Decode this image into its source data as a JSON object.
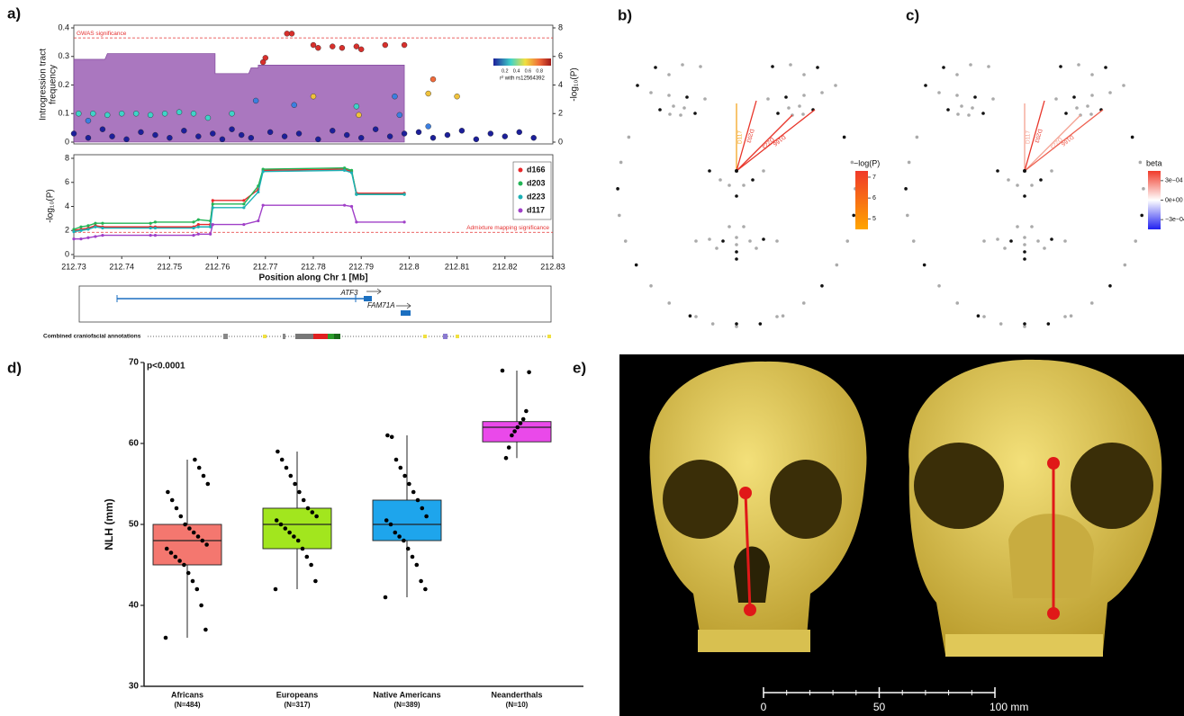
{
  "chart_data": [
    {
      "type": "area",
      "panel": "a)",
      "ylabel": [
        "Introgression tract",
        "frequency"
      ],
      "y2label": "-log₁₀(P)",
      "xlim": [
        212.73,
        212.83
      ],
      "ylim": [
        0,
        0.4
      ],
      "yticks": [
        0,
        0.1,
        0.2,
        0.3,
        0.4
      ],
      "y2lim": [
        0,
        8
      ],
      "y2ticks": [
        0,
        2,
        4,
        6,
        8
      ],
      "area": {
        "color": "#9b5fb4",
        "x": [
          212.73,
          212.7365,
          212.737,
          212.7595,
          212.7595,
          212.7665,
          212.767,
          212.7685,
          212.7685,
          212.799
        ],
        "values": [
          0.29,
          0.29,
          0.31,
          0.31,
          0.24,
          0.24,
          0.26,
          0.26,
          0.27,
          0.27
        ]
      },
      "annotation": {
        "text": "GWAS significance",
        "value": 7.3,
        "axis": "y2"
      },
      "colorbar": {
        "title": "r² with rs12564392",
        "lim": [
          0,
          1
        ],
        "ticks": [
          0.2,
          0.4,
          0.6,
          0.8
        ]
      },
      "series": [
        {
          "color": "#1c1f9a",
          "axis": "y2",
          "x": [
            212.73,
            212.733,
            212.736,
            212.738,
            212.741,
            212.744,
            212.747,
            212.75,
            212.753,
            212.756,
            212.759,
            212.761,
            212.763,
            212.765,
            212.767,
            212.771,
            212.774,
            212.777,
            212.781,
            212.784,
            212.787,
            212.79,
            212.793,
            212.796,
            212.799,
            212.802,
            212.805,
            212.808,
            212.811,
            212.814,
            212.817,
            212.82,
            212.823,
            212.826
          ],
          "values": [
            0.6,
            0.3,
            0.9,
            0.4,
            0.2,
            0.7,
            0.5,
            0.3,
            0.8,
            0.4,
            0.6,
            0.2,
            0.9,
            0.5,
            0.3,
            0.7,
            0.4,
            0.6,
            0.2,
            0.8,
            0.5,
            0.3,
            0.9,
            0.4,
            0.6,
            0.7,
            0.3,
            0.5,
            0.8,
            0.2,
            0.6,
            0.4,
            0.7,
            0.3
          ]
        },
        {
          "color": "#3fd3c8",
          "axis": "y2",
          "x": [
            212.731,
            212.734,
            212.737,
            212.74,
            212.743,
            212.746,
            212.749,
            212.752,
            212.755,
            212.758,
            212.763,
            212.789
          ],
          "values": [
            2.0,
            2.0,
            1.9,
            2.0,
            2.0,
            1.9,
            2.0,
            2.1,
            2.0,
            1.7,
            2.0,
            2.5
          ]
        },
        {
          "color": "#3b7fe0",
          "axis": "y2",
          "x": [
            212.733,
            212.768,
            212.776,
            212.797,
            212.798,
            212.804
          ],
          "values": [
            1.5,
            2.9,
            2.6,
            3.2,
            1.9,
            1.1
          ]
        },
        {
          "color": "#f0c23c",
          "axis": "y2",
          "x": [
            212.78,
            212.804,
            212.81,
            212.7895
          ],
          "values": [
            3.2,
            3.4,
            3.2,
            1.9
          ]
        },
        {
          "color": "#f06a3a",
          "axis": "y2",
          "x": [
            212.805
          ],
          "values": [
            4.4
          ]
        },
        {
          "color": "#d8302c",
          "axis": "y2",
          "x": [
            212.7745,
            212.7755,
            212.78,
            212.781,
            212.784,
            212.786,
            212.789,
            212.79,
            212.795,
            212.799,
            212.77,
            212.7695
          ],
          "values": [
            7.6,
            7.6,
            6.8,
            6.6,
            6.7,
            6.6,
            6.7,
            6.5,
            6.8,
            6.8,
            5.9,
            5.6
          ]
        }
      ]
    },
    {
      "type": "line",
      "ylabel": "-log₁₀(P)",
      "xlabel": "Position along Chr 1 [Mb]",
      "xlim": [
        212.73,
        212.83
      ],
      "xticks": [
        212.73,
        212.74,
        212.75,
        212.76,
        212.77,
        212.78,
        212.79,
        212.8,
        212.81,
        212.82,
        212.83
      ],
      "ylim": [
        0,
        8
      ],
      "yticks": [
        0,
        2,
        4,
        6,
        8
      ],
      "legend": "top-right",
      "annotation": {
        "text": "Admixture mapping significance",
        "value": 1.85
      },
      "x": [
        212.73,
        212.7315,
        212.733,
        212.7345,
        212.736,
        212.746,
        212.747,
        212.755,
        212.756,
        212.7585,
        212.759,
        212.7655,
        212.7685,
        212.7695,
        212.7865,
        212.788,
        212.789,
        212.799
      ],
      "series": [
        {
          "name": "d166",
          "color": "#e8282b",
          "values": [
            2.0,
            2.1,
            2.2,
            2.4,
            2.3,
            2.3,
            2.3,
            2.3,
            2.5,
            2.5,
            4.5,
            4.5,
            5.4,
            7.0,
            7.1,
            6.9,
            5.1,
            5.1
          ]
        },
        {
          "name": "d203",
          "color": "#22b455",
          "values": [
            2.1,
            2.3,
            2.4,
            2.6,
            2.6,
            2.6,
            2.7,
            2.7,
            2.9,
            2.8,
            4.2,
            4.2,
            5.7,
            7.1,
            7.2,
            7.0,
            5.0,
            5.0
          ]
        },
        {
          "name": "d223",
          "color": "#1bb0b5",
          "values": [
            1.9,
            2.0,
            2.1,
            2.3,
            2.2,
            2.2,
            2.2,
            2.2,
            2.3,
            2.3,
            3.9,
            3.9,
            5.2,
            6.9,
            7.0,
            6.8,
            5.0,
            5.0
          ]
        },
        {
          "name": "d117",
          "color": "#a040c8",
          "values": [
            1.3,
            1.3,
            1.4,
            1.5,
            1.6,
            1.6,
            1.6,
            1.6,
            1.7,
            1.7,
            2.5,
            2.5,
            2.8,
            4.1,
            4.1,
            4.0,
            2.7,
            2.7
          ]
        }
      ]
    },
    {
      "type": "box",
      "panel": "d)",
      "ylabel": "NLH (mm)",
      "annotation": "p<0.0001",
      "ylim": [
        30,
        70
      ],
      "yticks": [
        30,
        40,
        50,
        60,
        70
      ],
      "categories": [
        "Africans",
        "Europeans",
        "Native Americans",
        "Neanderthals"
      ],
      "sublabels": [
        "(N=484)",
        "(N=317)",
        "(N=389)",
        "(N=10)"
      ],
      "boxes": [
        {
          "color": "#f4776f",
          "min": 36,
          "q1": 45,
          "median": 48,
          "q3": 50,
          "max": 58,
          "points": [
            36,
            37,
            40,
            42,
            43,
            44,
            45,
            45.5,
            46,
            46.5,
            47,
            47.5,
            48,
            48.5,
            49,
            49.5,
            50,
            51,
            52,
            53,
            54,
            55,
            56,
            57,
            58
          ]
        },
        {
          "color": "#a2e61e",
          "min": 42,
          "q1": 47,
          "median": 50,
          "q3": 52,
          "max": 59,
          "points": [
            42,
            43,
            45,
            46,
            47,
            48,
            48.5,
            49,
            49.5,
            50,
            50.5,
            51,
            51.5,
            52,
            53,
            54,
            55,
            56,
            57,
            58,
            59
          ]
        },
        {
          "color": "#1ea5ec",
          "min": 41,
          "q1": 48,
          "median": 50,
          "q3": 53,
          "max": 61,
          "points": [
            41,
            42,
            43,
            45,
            46,
            47,
            48,
            48.5,
            49,
            50,
            50.5,
            51,
            52,
            53,
            54,
            55,
            56,
            57,
            58,
            60.8,
            61
          ]
        },
        {
          "color": "#ea49ea",
          "min": 58.2,
          "q1": 60.2,
          "median": 62,
          "q3": 62.7,
          "max": 69,
          "points": [
            69,
            68.8,
            64,
            63,
            62.5,
            62,
            61.5,
            61,
            59.5,
            58.2
          ]
        }
      ]
    }
  ],
  "gene_track": {
    "genes": [
      "ATF3",
      "FAM71A"
    ],
    "annotation_label": "Combined craniofacial annotations"
  },
  "panel_b": {
    "label": "b)",
    "distances": [
      "D117",
      "D203",
      "D223",
      "D166"
    ],
    "colorbar": {
      "title": "−log(P)",
      "lim": [
        4.5,
        7.3
      ],
      "ticks": [
        5,
        6,
        7
      ]
    }
  },
  "panel_c": {
    "label": "c)",
    "distances": [
      "D117",
      "D203",
      "D223",
      "D166"
    ],
    "colorbar": {
      "title": "beta",
      "lim": [
        -0.00045,
        0.00045
      ],
      "ticks": [
        {
          "value": 0.0003,
          "label": "3e−04"
        },
        {
          "value": 0,
          "label": "0e+00"
        },
        {
          "value": -0.0003,
          "label": "−3e−04"
        }
      ]
    }
  },
  "panel_e": {
    "label": "e)",
    "scale_lim": [
      0,
      100
    ],
    "scale_ticks": [
      0,
      50,
      {
        "value": 100,
        "label": "100 mm"
      }
    ]
  }
}
